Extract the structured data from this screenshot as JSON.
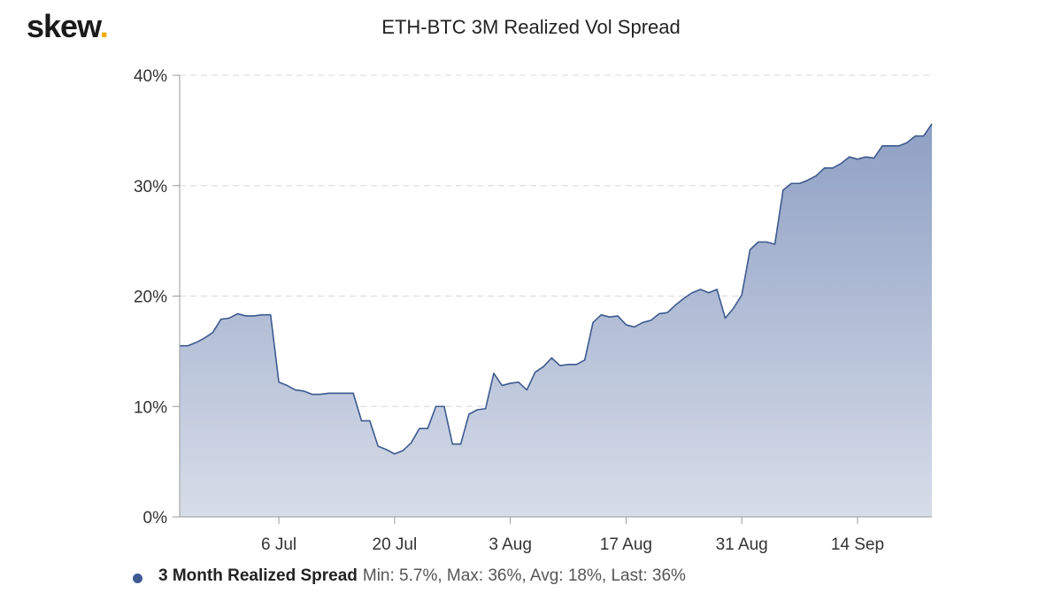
{
  "brand": {
    "logo_text": "skew",
    "logo_dot": "."
  },
  "chart_data": {
    "type": "area",
    "title": "ETH-BTC 3M Realized Vol Spread",
    "xlabel": "",
    "ylabel": "",
    "ylim": [
      0,
      40
    ],
    "y_ticks": [
      0,
      10,
      20,
      30,
      40
    ],
    "y_tick_labels": [
      "0%",
      "10%",
      "20%",
      "30%",
      "40%"
    ],
    "x_ticks": [
      {
        "label": "6 Jul",
        "day": 14
      },
      {
        "label": "20 Jul",
        "day": 28
      },
      {
        "label": "3 Aug",
        "day": 42
      },
      {
        "label": "17 Aug",
        "day": 56
      },
      {
        "label": "31 Aug",
        "day": 70
      },
      {
        "label": "14 Sep",
        "day": 84
      }
    ],
    "x_range_days": [
      2,
      93
    ],
    "x_unit_note": "",
    "grid": true,
    "colors": {
      "line": "#3d5a8f",
      "fill_top": "#8fa0c4",
      "fill_bottom": "#d7dde9",
      "grid": "#d8d8d8"
    },
    "series": [
      {
        "name": "3 Month Realized Spread",
        "points": [
          [
            2,
            15.5
          ],
          [
            3,
            15.5
          ],
          [
            4,
            15.8
          ],
          [
            5,
            16.2
          ],
          [
            6,
            16.7
          ],
          [
            7,
            17.9
          ],
          [
            8,
            18.0
          ],
          [
            9,
            18.4
          ],
          [
            10,
            18.2
          ],
          [
            11,
            18.2
          ],
          [
            12,
            18.3
          ],
          [
            13,
            18.3
          ],
          [
            14,
            12.2
          ],
          [
            15,
            11.9
          ],
          [
            16,
            11.5
          ],
          [
            17,
            11.4
          ],
          [
            18,
            11.1
          ],
          [
            19,
            11.1
          ],
          [
            20,
            11.2
          ],
          [
            21,
            11.2
          ],
          [
            22,
            11.2
          ],
          [
            23,
            11.2
          ],
          [
            24,
            8.7
          ],
          [
            25,
            8.7
          ],
          [
            26,
            6.4
          ],
          [
            27,
            6.1
          ],
          [
            28,
            5.7
          ],
          [
            29,
            6.0
          ],
          [
            30,
            6.7
          ],
          [
            31,
            8.0
          ],
          [
            32,
            8.0
          ],
          [
            33,
            10.0
          ],
          [
            34,
            10.0
          ],
          [
            35,
            6.6
          ],
          [
            36,
            6.6
          ],
          [
            37,
            9.3
          ],
          [
            38,
            9.7
          ],
          [
            39,
            9.8
          ],
          [
            40,
            13.0
          ],
          [
            41,
            11.9
          ],
          [
            42,
            12.1
          ],
          [
            43,
            12.2
          ],
          [
            44,
            11.5
          ],
          [
            45,
            13.1
          ],
          [
            46,
            13.6
          ],
          [
            47,
            14.4
          ],
          [
            48,
            13.7
          ],
          [
            49,
            13.8
          ],
          [
            50,
            13.8
          ],
          [
            51,
            14.2
          ],
          [
            52,
            17.6
          ],
          [
            53,
            18.3
          ],
          [
            54,
            18.1
          ],
          [
            55,
            18.2
          ],
          [
            56,
            17.4
          ],
          [
            57,
            17.2
          ],
          [
            58,
            17.6
          ],
          [
            59,
            17.8
          ],
          [
            60,
            18.4
          ],
          [
            61,
            18.5
          ],
          [
            62,
            19.2
          ],
          [
            63,
            19.8
          ],
          [
            64,
            20.3
          ],
          [
            65,
            20.6
          ],
          [
            66,
            20.3
          ],
          [
            67,
            20.6
          ],
          [
            68,
            18.0
          ],
          [
            69,
            18.9
          ],
          [
            70,
            20.1
          ],
          [
            71,
            24.2
          ],
          [
            72,
            24.9
          ],
          [
            73,
            24.9
          ],
          [
            74,
            24.7
          ],
          [
            75,
            29.6
          ],
          [
            76,
            30.2
          ],
          [
            77,
            30.2
          ],
          [
            78,
            30.5
          ],
          [
            79,
            30.9
          ],
          [
            80,
            31.6
          ],
          [
            81,
            31.6
          ],
          [
            82,
            32.0
          ],
          [
            83,
            32.6
          ],
          [
            84,
            32.4
          ],
          [
            85,
            32.6
          ],
          [
            86,
            32.5
          ],
          [
            87,
            33.6
          ],
          [
            88,
            33.6
          ],
          [
            89,
            33.6
          ],
          [
            90,
            33.9
          ],
          [
            91,
            34.5
          ],
          [
            92,
            34.5
          ],
          [
            93,
            35.6
          ]
        ]
      }
    ]
  },
  "legend": {
    "name": "3 Month Realized Spread",
    "stats": "Min: 5.7%, Max: 36%, Avg: 18%, Last: 36%"
  }
}
